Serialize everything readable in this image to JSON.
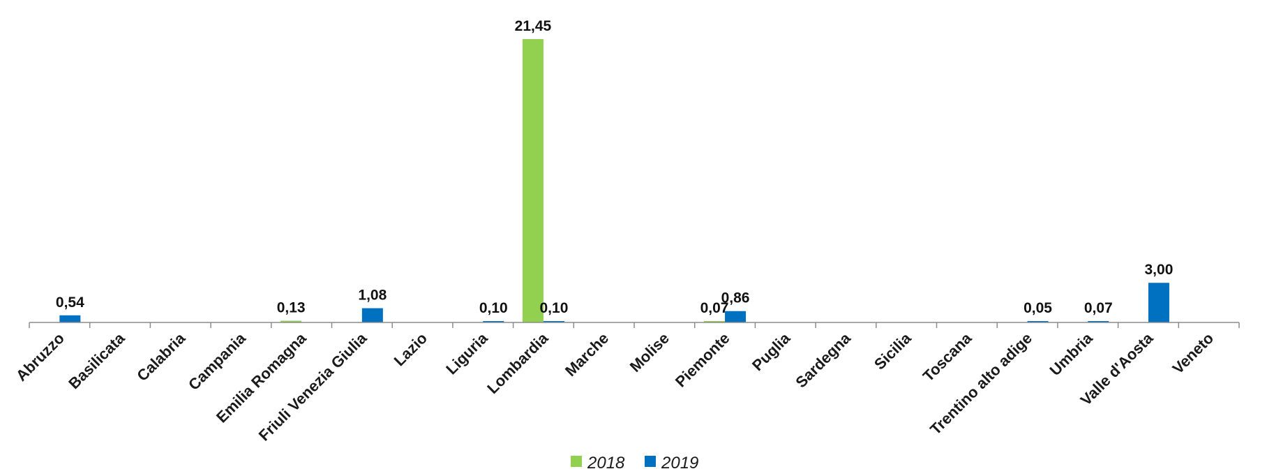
{
  "chart_data": {
    "type": "bar",
    "title": "",
    "xlabel": "",
    "ylabel": "",
    "ylim": [
      0,
      21.45
    ],
    "grid": false,
    "legend_position": "bottom",
    "categories": [
      "Abruzzo",
      "Basilicata",
      "Calabria",
      "Campania",
      "Emilia Romagna",
      "Friuli Venezia Giulia",
      "Lazio",
      "Liguria",
      "Lombardia",
      "Marche",
      "Molise",
      "Piemonte",
      "Puglia",
      "Sardegna",
      "Sicilia",
      "Toscana",
      "Trentino alto adige",
      "Umbria",
      "Valle d'Aosta",
      "Veneto"
    ],
    "series": [
      {
        "name": "2018",
        "color": "#92d050",
        "values": [
          null,
          null,
          null,
          null,
          0.13,
          null,
          null,
          null,
          21.45,
          null,
          null,
          0.07,
          null,
          null,
          null,
          null,
          null,
          null,
          null,
          null
        ],
        "labels": [
          "",
          "",
          "",
          "",
          "0,13",
          "",
          "",
          "",
          "21,45",
          "",
          "",
          "0,07",
          "",
          "",
          "",
          "",
          "",
          "",
          "",
          ""
        ]
      },
      {
        "name": "2019",
        "color": "#0070c0",
        "values": [
          0.54,
          null,
          null,
          null,
          null,
          1.08,
          null,
          0.1,
          0.1,
          null,
          null,
          0.86,
          null,
          null,
          null,
          null,
          0.05,
          0.07,
          3.0,
          null
        ],
        "labels": [
          "0,54",
          "",
          "",
          "",
          "",
          "1,08",
          "",
          "0,10",
          "0,10",
          "",
          "",
          "0,86",
          "",
          "",
          "",
          "",
          "0,05",
          "0,07",
          "3,00",
          ""
        ]
      }
    ]
  }
}
